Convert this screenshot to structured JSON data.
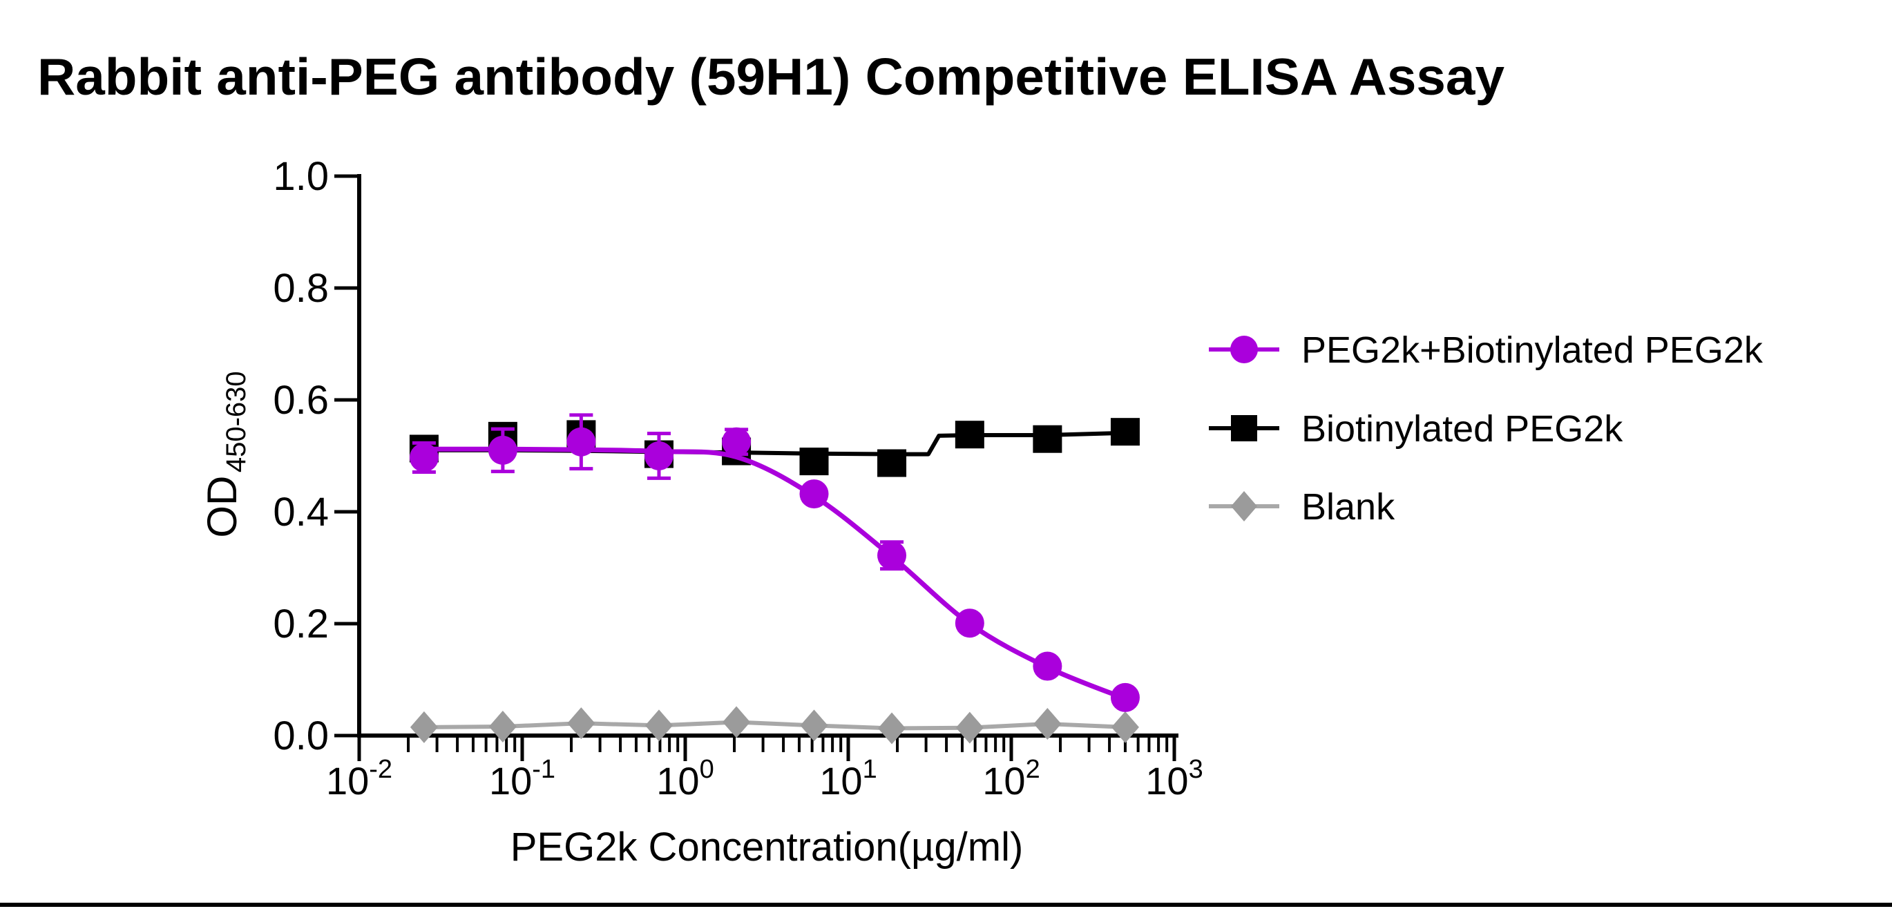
{
  "title": "Rabbit anti-PEG antibody (59H1) Competitive ELISA Assay",
  "axes": {
    "x": {
      "label": "PEG2k Concentration(µg/ml)",
      "scale": "log10",
      "base": "10",
      "tick_exponents": [
        "-2",
        "-1",
        "0",
        "1",
        "2",
        "3"
      ]
    },
    "y": {
      "label_main": "OD",
      "label_sub": "450-630",
      "ticks": [
        "1.0",
        "0.8",
        "0.6",
        "0.4",
        "0.2",
        "0.0"
      ],
      "min": 0,
      "max": 1
    }
  },
  "legend": [
    {
      "label": "PEG2k+Biotinylated PEG2k",
      "marker": "circle",
      "color": "#AA00DC"
    },
    {
      "label": "Biotinylated PEG2k",
      "marker": "square",
      "color": "#000000"
    },
    {
      "label": "Blank",
      "marker": "diamond",
      "color": "#9B9B9B"
    }
  ],
  "colors": {
    "magenta": "#AA00DC",
    "black": "#000000",
    "gray_marker": "#9B9B9B",
    "gray_line": "#A8A8A8",
    "background": "#FFFFFF"
  },
  "chart_data": {
    "type": "line",
    "title": "Rabbit anti-PEG antibody (59H1) Competitive ELISA Assay",
    "xlabel": "PEG2k Concentration(µg/ml)",
    "ylabel": "OD450-630",
    "x_scale": "log",
    "x_range_exponents": [
      -2,
      3
    ],
    "ylim": [
      0.0,
      1.0
    ],
    "grid": false,
    "legend_position": "right",
    "concentrations_ug_ml": [
      0.025,
      0.076,
      0.23,
      0.69,
      2.06,
      6.17,
      18.5,
      55.6,
      166.7,
      500
    ],
    "series": [
      {
        "name": "PEG2k+Biotinylated PEG2k",
        "marker": "circle",
        "color": "#AA00DC",
        "values": [
          0.497,
          0.51,
          0.525,
          0.5,
          0.525,
          0.432,
          0.322,
          0.201,
          0.124,
          0.068
        ],
        "errors": [
          0.026,
          0.038,
          0.048,
          0.04,
          0.022,
          0.012,
          0.024,
          0.012,
          0.01,
          0.01
        ],
        "fit_curve_values": [
          0.512,
          0.512,
          0.511,
          0.508,
          0.498,
          0.428,
          0.32,
          0.2,
          0.122,
          0.066
        ]
      },
      {
        "name": "Biotinylated PEG2k",
        "marker": "square",
        "color": "#000000",
        "values": [
          0.513,
          0.536,
          0.539,
          0.503,
          0.508,
          0.49,
          0.487,
          0.538,
          0.53,
          0.543
        ],
        "errors": [
          0.012,
          0.018,
          0.014,
          0.01,
          0.01,
          0.008,
          0.008,
          0.01,
          0.008,
          0.01
        ],
        "connect_line": [
          [
            0.025,
            0.51
          ],
          [
            0.076,
            0.51
          ],
          [
            0.23,
            0.509
          ],
          [
            0.69,
            0.507
          ],
          [
            2.06,
            0.506
          ],
          [
            6.17,
            0.504
          ],
          [
            18.5,
            0.503
          ],
          [
            31,
            0.503
          ],
          [
            36,
            0.536
          ],
          [
            55.6,
            0.537
          ],
          [
            166.7,
            0.537
          ],
          [
            500,
            0.541
          ]
        ]
      },
      {
        "name": "Blank",
        "marker": "diamond",
        "color": "#9B9B9B",
        "line_color": "#A8A8A8",
        "values": [
          0.015,
          0.016,
          0.022,
          0.018,
          0.024,
          0.018,
          0.013,
          0.014,
          0.021,
          0.015
        ],
        "errors": [
          0,
          0,
          0,
          0,
          0,
          0,
          0,
          0,
          0,
          0
        ]
      }
    ]
  }
}
